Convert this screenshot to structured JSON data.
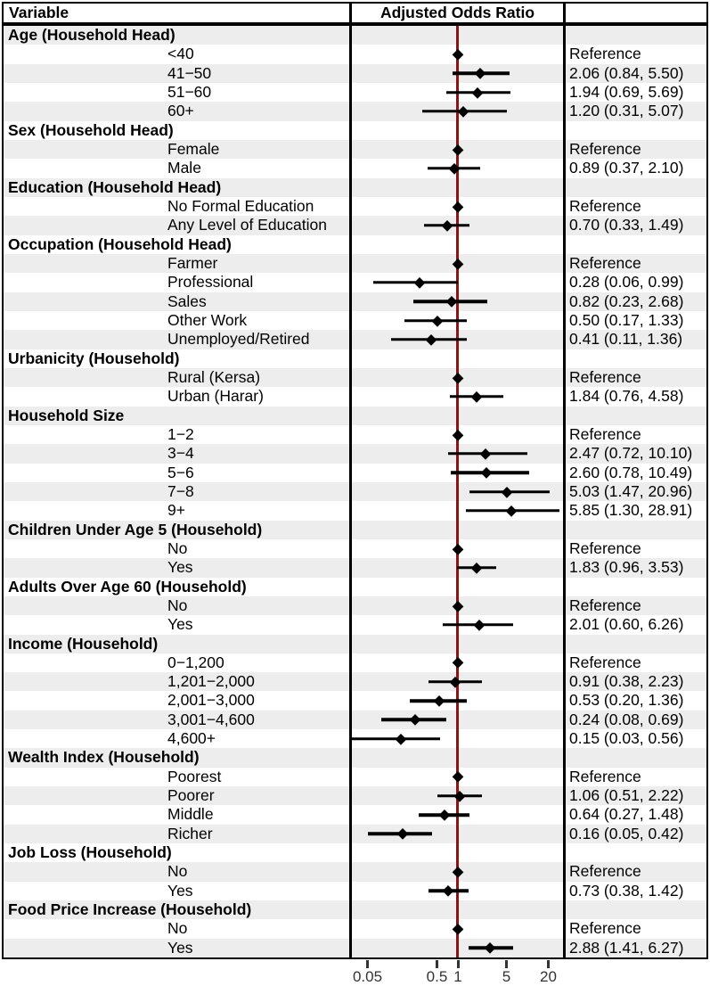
{
  "header": {
    "variable": "Variable",
    "plot": "Adjusted Odds Ratio",
    "estimate": ""
  },
  "colors": {
    "stripe": "#ededed",
    "reference_line": "#8b1414",
    "marker": "#000000",
    "axis_text": "#333333"
  },
  "chart_data": {
    "type": "scatter",
    "subtype": "forest-plot",
    "title": "Adjusted Odds Ratio",
    "x_scale": "log10",
    "x_ticks": [
      "0.05",
      "0.5",
      "1",
      "5",
      "20"
    ],
    "x_tick_values": [
      0.05,
      0.5,
      1,
      5,
      20
    ],
    "x_range": [
      0.028,
      31.6
    ],
    "reference_line_at": 1,
    "rows": [
      {
        "label": "Age (Household Head)",
        "group": true
      },
      {
        "label": "<40",
        "estimate": "Reference",
        "or": 1
      },
      {
        "label": "41−50",
        "estimate": "2.06 (0.84, 5.50)",
        "or": 2.06,
        "lo": 0.84,
        "hi": 5.5
      },
      {
        "label": "51−60",
        "estimate": "1.94 (0.69, 5.69)",
        "or": 1.94,
        "lo": 0.69,
        "hi": 5.69
      },
      {
        "label": "60+",
        "estimate": "1.20 (0.31, 5.07)",
        "or": 1.2,
        "lo": 0.31,
        "hi": 5.07
      },
      {
        "label": "Sex (Household Head)",
        "group": true
      },
      {
        "label": "Female",
        "estimate": "Reference",
        "or": 1
      },
      {
        "label": "Male",
        "estimate": "0.89 (0.37, 2.10)",
        "or": 0.89,
        "lo": 0.37,
        "hi": 2.1
      },
      {
        "label": "Education (Household Head)",
        "group": true
      },
      {
        "label": "No Formal Education",
        "estimate": "Reference",
        "or": 1
      },
      {
        "label": "Any Level of Education",
        "estimate": "0.70 (0.33, 1.49)",
        "or": 0.7,
        "lo": 0.33,
        "hi": 1.49
      },
      {
        "label": "Occupation (Household Head)",
        "group": true
      },
      {
        "label": "Farmer",
        "estimate": "Reference",
        "or": 1
      },
      {
        "label": "Professional",
        "estimate": "0.28 (0.06, 0.99)",
        "or": 0.28,
        "lo": 0.06,
        "hi": 0.99
      },
      {
        "label": "Sales",
        "estimate": "0.82 (0.23, 2.68)",
        "or": 0.82,
        "lo": 0.23,
        "hi": 2.68
      },
      {
        "label": "Other Work",
        "estimate": "0.50 (0.17, 1.33)",
        "or": 0.5,
        "lo": 0.17,
        "hi": 1.33
      },
      {
        "label": "Unemployed/Retired",
        "estimate": "0.41 (0.11, 1.36)",
        "or": 0.41,
        "lo": 0.11,
        "hi": 1.36
      },
      {
        "label": "Urbanicity (Household)",
        "group": true
      },
      {
        "label": "Rural (Kersa)",
        "estimate": "Reference",
        "or": 1
      },
      {
        "label": "Urban (Harar)",
        "estimate": "1.84 (0.76, 4.58)",
        "or": 1.84,
        "lo": 0.76,
        "hi": 4.58
      },
      {
        "label": "Household Size",
        "group": true
      },
      {
        "label": "1−2",
        "estimate": "Reference",
        "or": 1
      },
      {
        "label": "3−4",
        "estimate": "2.47 (0.72, 10.10)",
        "or": 2.47,
        "lo": 0.72,
        "hi": 10.1
      },
      {
        "label": "5−6",
        "estimate": "2.60 (0.78, 10.49)",
        "or": 2.6,
        "lo": 0.78,
        "hi": 10.49
      },
      {
        "label": "7−8",
        "estimate": "5.03 (1.47, 20.96)",
        "or": 5.03,
        "lo": 1.47,
        "hi": 20.96
      },
      {
        "label": "9+",
        "estimate": "5.85 (1.30, 28.91)",
        "or": 5.85,
        "lo": 1.3,
        "hi": 28.91
      },
      {
        "label": "Children Under Age 5 (Household)",
        "group": true
      },
      {
        "label": "No",
        "estimate": "Reference",
        "or": 1
      },
      {
        "label": "Yes",
        "estimate": "1.83 (0.96, 3.53)",
        "or": 1.83,
        "lo": 0.96,
        "hi": 3.53
      },
      {
        "label": "Adults Over Age 60 (Household)",
        "group": true
      },
      {
        "label": "No",
        "estimate": "Reference",
        "or": 1
      },
      {
        "label": "Yes",
        "estimate": "2.01 (0.60, 6.26)",
        "or": 2.01,
        "lo": 0.6,
        "hi": 6.26
      },
      {
        "label": "Income (Household)",
        "group": true
      },
      {
        "label": "0−1,200",
        "estimate": "Reference",
        "or": 1
      },
      {
        "label": "1,201−2,000",
        "estimate": "0.91 (0.38, 2.23)",
        "or": 0.91,
        "lo": 0.38,
        "hi": 2.23
      },
      {
        "label": "2,001−3,000",
        "estimate": "0.53 (0.20, 1.36)",
        "or": 0.53,
        "lo": 0.2,
        "hi": 1.36
      },
      {
        "label": "3,001−4,600",
        "estimate": "0.24 (0.08, 0.69)",
        "or": 0.24,
        "lo": 0.08,
        "hi": 0.69
      },
      {
        "label": "4,600+",
        "estimate": "0.15 (0.03, 0.56)",
        "or": 0.15,
        "lo": 0.03,
        "hi": 0.56
      },
      {
        "label": "Wealth Index (Household)",
        "group": true
      },
      {
        "label": "Poorest",
        "estimate": "Reference",
        "or": 1
      },
      {
        "label": "Poorer",
        "estimate": "1.06 (0.51, 2.22)",
        "or": 1.06,
        "lo": 0.51,
        "hi": 2.22
      },
      {
        "label": "Middle",
        "estimate": "0.64 (0.27, 1.48)",
        "or": 0.64,
        "lo": 0.27,
        "hi": 1.48
      },
      {
        "label": "Richer",
        "estimate": "0.16 (0.05, 0.42)",
        "or": 0.16,
        "lo": 0.05,
        "hi": 0.42
      },
      {
        "label": "Job Loss (Household)",
        "group": true
      },
      {
        "label": "No",
        "estimate": "Reference",
        "or": 1
      },
      {
        "label": "Yes",
        "estimate": "0.73 (0.38, 1.42)",
        "or": 0.73,
        "lo": 0.38,
        "hi": 1.42
      },
      {
        "label": "Food Price Increase (Household)",
        "group": true
      },
      {
        "label": "No",
        "estimate": "Reference",
        "or": 1
      },
      {
        "label": "Yes",
        "estimate": "2.88 (1.41, 6.27)",
        "or": 2.88,
        "lo": 1.41,
        "hi": 6.27
      }
    ]
  }
}
